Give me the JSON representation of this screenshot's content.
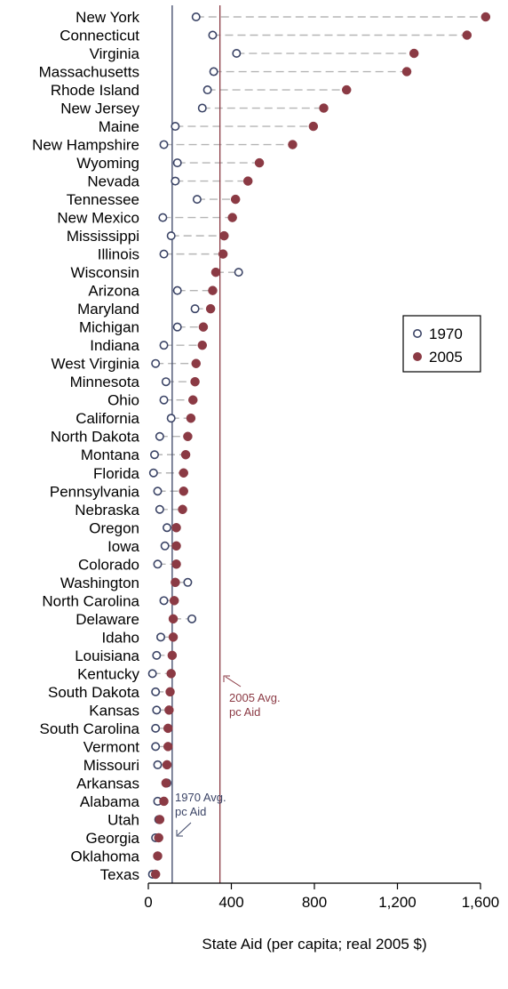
{
  "chart_data": {
    "type": "dot",
    "xlabel": "State Aid (per capita; real 2005 $)",
    "xlim": [
      0,
      1600
    ],
    "xticks": [
      0,
      400,
      800,
      1200,
      1600
    ],
    "xtick_labels": [
      "0",
      "400",
      "800",
      "1,200",
      "1,600"
    ],
    "legend": {
      "position": "right",
      "entries": [
        "1970",
        "2005"
      ]
    },
    "colors": {
      "y1970": "#3b4466",
      "y2005": "#8b3a44",
      "dashes": "#b5b5b5"
    },
    "reference_lines": [
      {
        "series": "1970",
        "value": 115,
        "label_line1": "1970 Avg.",
        "label_line2": "pc Aid"
      },
      {
        "series": "2005",
        "value": 345,
        "label_line1": "2005 Avg.",
        "label_line2": "pc Aid"
      }
    ],
    "states": [
      "New York",
      "Connecticut",
      "Virginia",
      "Massachusetts",
      "Rhode Island",
      "New Jersey",
      "Maine",
      "New Hampshire",
      "Wyoming",
      "Nevada",
      "Tennessee",
      "New Mexico",
      "Mississippi",
      "Illinois",
      "Wisconsin",
      "Arizona",
      "Maryland",
      "Michigan",
      "Indiana",
      "West Virginia",
      "Minnesota",
      "Ohio",
      "California",
      "North Dakota",
      "Montana",
      "Florida",
      "Pennsylvania",
      "Nebraska",
      "Oregon",
      "Iowa",
      "Colorado",
      "Washington",
      "North Carolina",
      "Delaware",
      "Idaho",
      "Louisiana",
      "Kentucky",
      "South Dakota",
      "Kansas",
      "South Carolina",
      "Vermont",
      "Missouri",
      "Arkansas",
      "Alabama",
      "Utah",
      "Georgia",
      "Oklahoma",
      "Texas"
    ],
    "series": [
      {
        "name": "1970",
        "values": [
          230,
          310,
          425,
          315,
          285,
          260,
          130,
          75,
          140,
          130,
          235,
          70,
          110,
          75,
          435,
          140,
          225,
          140,
          75,
          35,
          85,
          75,
          110,
          55,
          30,
          25,
          45,
          55,
          90,
          80,
          45,
          190,
          75,
          210,
          60,
          40,
          20,
          35,
          40,
          35,
          35,
          45,
          90,
          45,
          50,
          35,
          45,
          20
        ]
      },
      {
        "name": "2005",
        "values": [
          1625,
          1535,
          1280,
          1245,
          955,
          845,
          795,
          695,
          535,
          480,
          420,
          405,
          365,
          360,
          325,
          310,
          300,
          265,
          260,
          230,
          225,
          215,
          205,
          190,
          180,
          170,
          170,
          165,
          135,
          135,
          135,
          130,
          125,
          120,
          120,
          115,
          110,
          105,
          100,
          95,
          95,
          90,
          85,
          75,
          55,
          50,
          45,
          35
        ]
      }
    ]
  }
}
